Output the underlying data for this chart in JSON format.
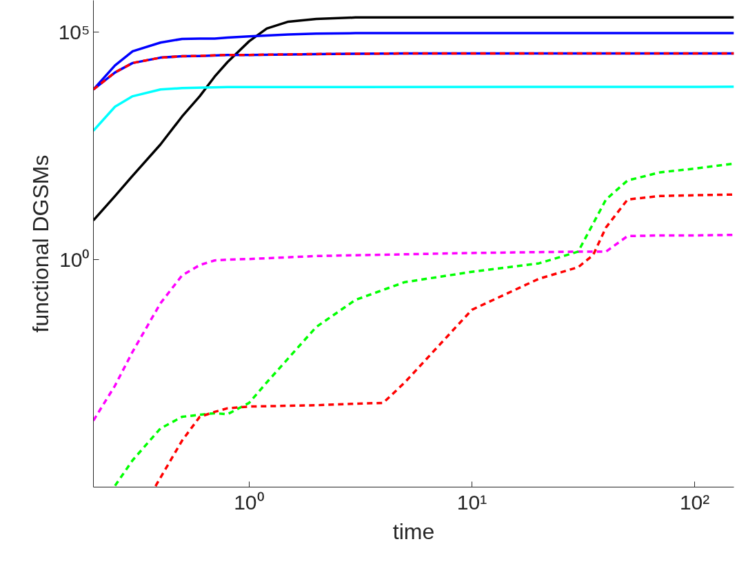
{
  "chart_data": {
    "type": "line",
    "xlabel": "time",
    "ylabel": "functional DGSMs",
    "log": "xy",
    "grid": false,
    "xlim": [
      0.2,
      150
    ],
    "ylim": [
      1e-05,
      500000
    ],
    "xticks": [
      {
        "value": 1,
        "label": "10⁰"
      },
      {
        "value": 10,
        "label": "10¹"
      },
      {
        "value": 100,
        "label": "10²"
      }
    ],
    "yticks": [
      {
        "value": 1,
        "label": "10⁰"
      },
      {
        "value": 100000,
        "label": "10⁵"
      }
    ],
    "series": [
      {
        "color": "#000000",
        "line_style": "solid",
        "x": [
          0.2,
          0.25,
          0.3,
          0.4,
          0.5,
          0.6,
          0.7,
          0.8,
          1,
          1.2,
          1.5,
          2,
          3,
          5,
          150
        ],
        "values": [
          7.3,
          25,
          70,
          340,
          1400,
          3900,
          10500,
          22000,
          63000,
          120000,
          170000,
          195000,
          210000,
          210000,
          210000
        ]
      },
      {
        "color": "#0000ff",
        "line_style": "solid",
        "x": [
          0.2,
          0.25,
          0.3,
          0.4,
          0.5,
          0.6,
          0.7,
          0.8,
          1,
          1.5,
          2,
          3,
          150
        ],
        "values": [
          5500,
          18600,
          38000,
          59000,
          71000,
          72000,
          72000,
          76000,
          81000,
          89000,
          93000,
          95000,
          95000
        ]
      },
      {
        "color": "#0000ff",
        "line_style": "solid",
        "x": [
          0.2,
          0.25,
          0.3,
          0.4,
          0.5,
          0.6,
          0.8,
          1,
          2,
          5,
          150
        ],
        "values": [
          5500,
          13000,
          21000,
          27500,
          29500,
          30000,
          31600,
          31600,
          33000,
          34000,
          34000
        ]
      },
      {
        "color": "#ff0000",
        "line_style": "dashed",
        "x": [
          0.2,
          0.25,
          0.3,
          0.4,
          0.5,
          0.6,
          0.8,
          1,
          2,
          5,
          150
        ],
        "values": [
          5500,
          13000,
          21000,
          27500,
          29500,
          30000,
          31600,
          31600,
          33000,
          34000,
          34000
        ]
      },
      {
        "color": "#00ffff",
        "line_style": "solid",
        "x": [
          0.2,
          0.25,
          0.3,
          0.4,
          0.5,
          0.8,
          2,
          150
        ],
        "values": [
          680,
          2300,
          3900,
          5500,
          5900,
          6200,
          6200,
          6300
        ]
      },
      {
        "color": "#ff00ff",
        "line_style": "dashed",
        "x": [
          0.2,
          0.25,
          0.3,
          0.4,
          0.5,
          0.6,
          0.7,
          0.8,
          1,
          2,
          10,
          30,
          40,
          50,
          70,
          100,
          150
        ],
        "values": [
          0.00029,
          0.0017,
          0.0095,
          0.11,
          0.45,
          0.76,
          0.96,
          1.0,
          1.03,
          1.2,
          1.4,
          1.5,
          1.5,
          3.3,
          3.4,
          3.4,
          3.5
        ]
      },
      {
        "color": "#00ff00",
        "line_style": "dashed",
        "x": [
          0.25,
          0.3,
          0.4,
          0.5,
          0.6,
          0.7,
          0.8,
          1,
          1.2,
          1.5,
          2,
          3,
          5,
          10,
          20,
          30,
          40,
          50,
          70,
          100,
          150
        ],
        "values": [
          1.07e-05,
          3.9e-05,
          0.000195,
          0.00035,
          0.00039,
          0.00042,
          0.0004,
          0.00071,
          0.002,
          0.0068,
          0.033,
          0.13,
          0.32,
          0.54,
          0.83,
          1.5,
          21,
          55,
          83,
          100,
          129
        ]
      },
      {
        "color": "#ff0000",
        "line_style": "dashed",
        "x": [
          0.38,
          0.5,
          0.6,
          0.7,
          0.8,
          1,
          2,
          3,
          4,
          5,
          10,
          20,
          30,
          35,
          40,
          50,
          70,
          100,
          150
        ],
        "values": [
          1.05e-05,
          0.000105,
          0.00035,
          0.00045,
          0.00054,
          0.00059,
          0.00063,
          0.00068,
          0.00071,
          0.002,
          0.079,
          0.38,
          0.68,
          1.26,
          5.1,
          21,
          25,
          26,
          27
        ]
      }
    ]
  }
}
